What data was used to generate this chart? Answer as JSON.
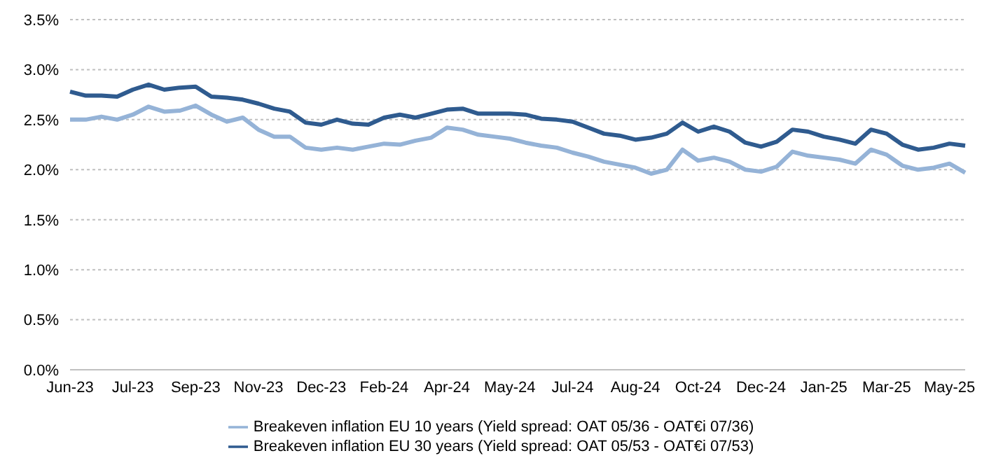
{
  "chart_data": {
    "type": "line",
    "categories": [
      "Jun-23",
      null,
      null,
      null,
      "Jul-23",
      null,
      null,
      null,
      "Sep-23",
      null,
      null,
      null,
      "Nov-23",
      null,
      null,
      null,
      "Dec-23",
      null,
      null,
      null,
      "Feb-24",
      null,
      null,
      null,
      "Apr-24",
      null,
      null,
      null,
      "May-24",
      null,
      null,
      null,
      "Jul-24",
      null,
      null,
      null,
      "Aug-24",
      null,
      null,
      null,
      "Oct-24",
      null,
      null,
      null,
      "Dec-24",
      null,
      null,
      null,
      "Jan-25",
      null,
      null,
      null,
      "Mar-25",
      null,
      null,
      null,
      "May-25",
      null
    ],
    "series": [
      {
        "name": "Breakeven inflation EU  10 years (Yield spread: OAT 05/36 - OAT€i 07/36)",
        "color": "#95b3d7",
        "values": [
          2.5,
          2.5,
          2.53,
          2.5,
          2.55,
          2.63,
          2.58,
          2.59,
          2.64,
          2.55,
          2.48,
          2.52,
          2.4,
          2.33,
          2.33,
          2.22,
          2.2,
          2.22,
          2.2,
          2.23,
          2.26,
          2.25,
          2.29,
          2.32,
          2.42,
          2.4,
          2.35,
          2.33,
          2.31,
          2.27,
          2.24,
          2.22,
          2.17,
          2.13,
          2.08,
          2.05,
          2.02,
          1.96,
          2.0,
          2.2,
          2.09,
          2.12,
          2.08,
          2.0,
          1.98,
          2.03,
          2.18,
          2.14,
          2.12,
          2.1,
          2.06,
          2.2,
          2.15,
          2.04,
          2.0,
          2.02,
          2.06,
          1.97
        ]
      },
      {
        "name": "Breakeven inflation EU  30 years (Yield spread: OAT 05/53 - OAT€i 07/53)",
        "color": "#2f5b8f",
        "values": [
          2.78,
          2.74,
          2.74,
          2.73,
          2.8,
          2.85,
          2.8,
          2.82,
          2.83,
          2.73,
          2.72,
          2.7,
          2.66,
          2.61,
          2.58,
          2.47,
          2.45,
          2.5,
          2.46,
          2.45,
          2.52,
          2.55,
          2.52,
          2.56,
          2.6,
          2.61,
          2.56,
          2.56,
          2.56,
          2.55,
          2.51,
          2.5,
          2.48,
          2.42,
          2.36,
          2.34,
          2.3,
          2.32,
          2.36,
          2.47,
          2.38,
          2.43,
          2.38,
          2.27,
          2.23,
          2.28,
          2.4,
          2.38,
          2.33,
          2.3,
          2.26,
          2.4,
          2.36,
          2.25,
          2.2,
          2.22,
          2.26,
          2.24
        ]
      }
    ],
    "ylim": [
      0,
      3.5
    ],
    "yticks": [
      {
        "value": 0,
        "label": "0.0%"
      },
      {
        "value": 0.5,
        "label": "0.5%"
      },
      {
        "value": 1,
        "label": "1.0%"
      },
      {
        "value": 1.5,
        "label": "1.5%"
      },
      {
        "value": 2,
        "label": "2.0%"
      },
      {
        "value": 2.5,
        "label": "2.5%"
      },
      {
        "value": 3,
        "label": "3.0%"
      },
      {
        "value": 3.5,
        "label": "3.5%"
      }
    ],
    "grid": "y",
    "legend": "bottom",
    "marker": "none",
    "line_style": "solid"
  }
}
